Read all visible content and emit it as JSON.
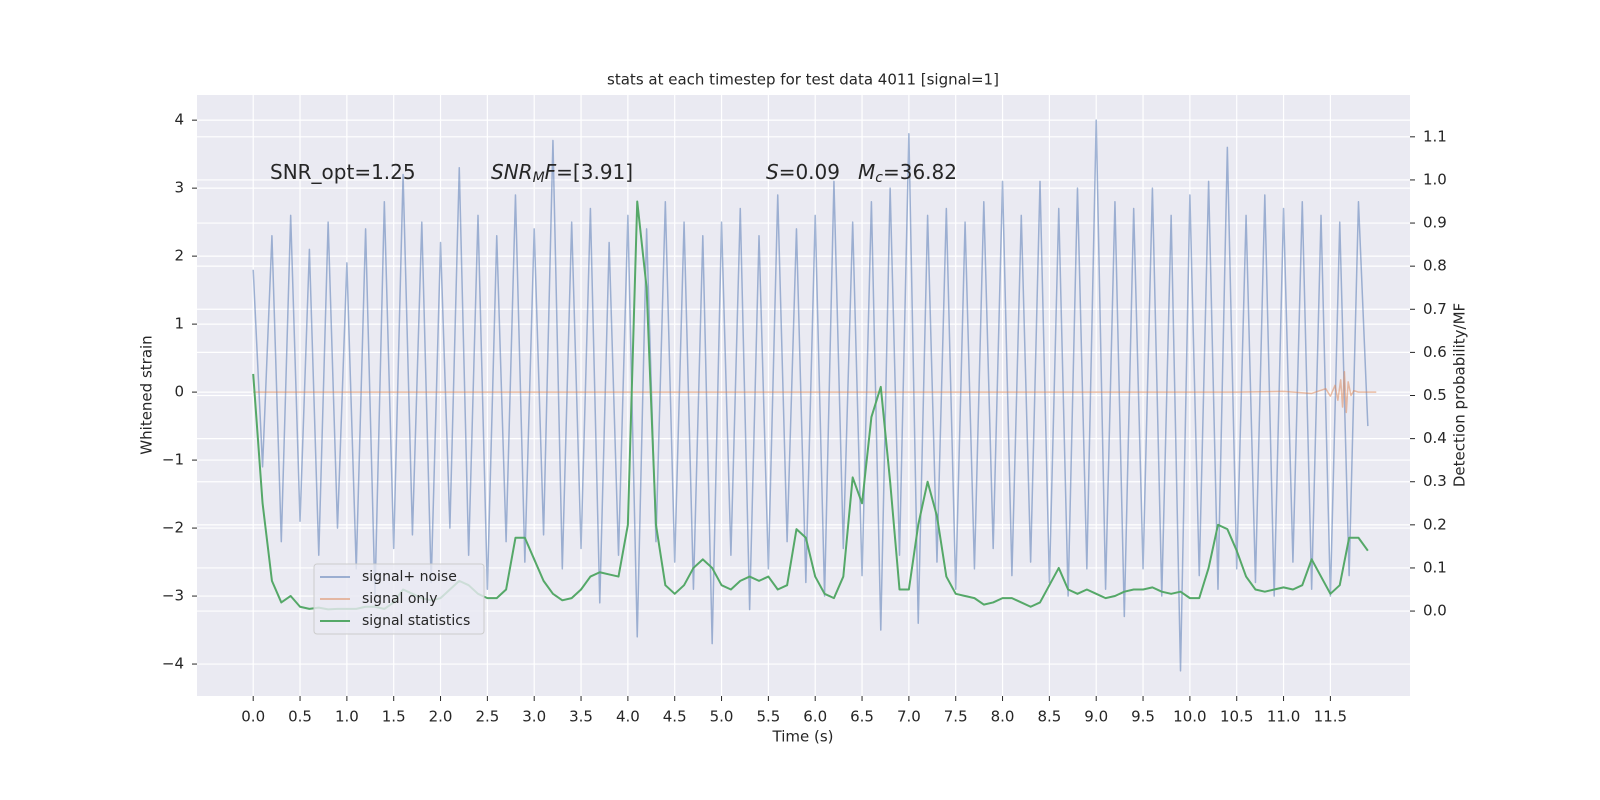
{
  "chart_data": {
    "type": "line",
    "title": "stats at each timestep for test data 4011 [signal=1]",
    "xlabel": "Time (s)",
    "ylabel": "Whitened strain",
    "y2label": "Detection probability/MF",
    "annotations": [
      {
        "parts": [
          {
            "text": "SNR_opt=1.25"
          }
        ]
      },
      {
        "parts": [
          {
            "text": "SNR",
            "italic": true
          },
          {
            "text": "M",
            "italic": true,
            "sub": true
          },
          {
            "text": "F",
            "italic": true
          },
          {
            "text": "=[3.91]"
          }
        ]
      },
      {
        "parts": [
          {
            "text": "S",
            "italic": true
          },
          {
            "text": "=0.09"
          }
        ]
      },
      {
        "parts": [
          {
            "text": "M",
            "italic": true
          },
          {
            "text": "c",
            "italic": true,
            "sub": true
          },
          {
            "text": "=36.82"
          }
        ]
      }
    ],
    "x": [
      0,
      0.1,
      0.2,
      0.3,
      0.4,
      0.5,
      0.6,
      0.7,
      0.8,
      0.9,
      1,
      1.1,
      1.2,
      1.3,
      1.4,
      1.5,
      1.6,
      1.7,
      1.8,
      1.9,
      2,
      2.1,
      2.2,
      2.3,
      2.4,
      2.5,
      2.6,
      2.7,
      2.8,
      2.9,
      3,
      3.1,
      3.2,
      3.3,
      3.4,
      3.5,
      3.6,
      3.7,
      3.8,
      3.9,
      4,
      4.1,
      4.2,
      4.3,
      4.4,
      4.5,
      4.6,
      4.7,
      4.8,
      4.9,
      5,
      5.1,
      5.2,
      5.3,
      5.4,
      5.5,
      5.6,
      5.7,
      5.8,
      5.9,
      6,
      6.1,
      6.2,
      6.3,
      6.4,
      6.5,
      6.6,
      6.7,
      6.8,
      6.9,
      7,
      7.1,
      7.2,
      7.3,
      7.4,
      7.5,
      7.6,
      7.7,
      7.8,
      7.9,
      8,
      8.1,
      8.2,
      8.3,
      8.4,
      8.5,
      8.6,
      8.7,
      8.8,
      8.9,
      9,
      9.1,
      9.2,
      9.3,
      9.4,
      9.5,
      9.6,
      9.7,
      9.8,
      9.9,
      10,
      10.1,
      10.2,
      10.3,
      10.4,
      10.5,
      10.6,
      10.7,
      10.8,
      10.9,
      11,
      11.1,
      11.2,
      11.3,
      11.4,
      11.5,
      11.6,
      11.7,
      11.8,
      11.9
    ],
    "series": [
      {
        "name": "signal+ noise",
        "color": "#4c72b0",
        "opacity": 0.5,
        "values": [
          1.8,
          -1.1,
          2.3,
          -2.2,
          2.6,
          -1.9,
          2.1,
          -2.4,
          2.5,
          -2.0,
          1.9,
          -2.6,
          2.4,
          -3.0,
          2.8,
          -2.3,
          3.2,
          -2.1,
          2.5,
          -2.8,
          2.2,
          -2.0,
          3.3,
          -2.4,
          2.6,
          -2.9,
          2.3,
          -2.2,
          2.9,
          -2.5,
          2.4,
          -2.1,
          3.7,
          -2.6,
          2.5,
          -2.3,
          2.7,
          -3.1,
          2.2,
          -2.4,
          2.6,
          -3.6,
          2.4,
          -2.2,
          2.8,
          -2.5,
          2.5,
          -2.9,
          2.3,
          -3.7,
          2.5,
          -2.4,
          2.7,
          -3.2,
          2.3,
          -2.6,
          2.9,
          -2.2,
          2.4,
          -2.8,
          2.6,
          -3.0,
          3.1,
          -2.3,
          2.5,
          -2.7,
          2.8,
          -3.5,
          3.0,
          -2.4,
          3.8,
          -3.4,
          2.6,
          -2.5,
          2.7,
          -2.9,
          2.5,
          -2.6,
          2.8,
          -2.3,
          3.1,
          -2.7,
          2.6,
          -2.5,
          3.1,
          -2.8,
          2.7,
          -3.0,
          3.0,
          -2.6,
          4.0,
          -2.9,
          2.8,
          -3.3,
          2.7,
          -2.6,
          3.0,
          -3.0,
          2.6,
          -4.1,
          2.9,
          -2.7,
          3.1,
          -2.9,
          3.6,
          -2.6,
          2.6,
          -2.8,
          2.9,
          -3.0,
          2.7,
          -2.5,
          2.8,
          -2.9,
          2.6,
          -3.0,
          2.5,
          -2.7,
          2.8,
          -0.5
        ]
      },
      {
        "name": "signal only",
        "color": "#dd8452",
        "opacity": 0.5,
        "x": [
          0,
          10.5,
          11.0,
          11.3,
          11.45,
          11.5,
          11.55,
          11.58,
          11.61,
          11.63,
          11.65,
          11.67,
          11.69,
          11.72,
          11.75,
          11.8,
          11.99
        ],
        "values": [
          0,
          0,
          0.01,
          -0.02,
          0.05,
          -0.06,
          0.1,
          -0.12,
          0.18,
          -0.22,
          0.3,
          -0.3,
          0.15,
          -0.05,
          0.02,
          0,
          0
        ]
      },
      {
        "name": "signal statistics",
        "color": "#55a868",
        "opacity": 1,
        "axis": "y2",
        "values": [
          0.55,
          0.25,
          0.07,
          0.02,
          0.035,
          0.01,
          0.005,
          0.008,
          0.004,
          0.005,
          0.005,
          0.005,
          0.01,
          0.01,
          0.005,
          0.02,
          0.05,
          0.04,
          0.03,
          0.025,
          0.03,
          0.05,
          0.07,
          0.06,
          0.04,
          0.03,
          0.03,
          0.05,
          0.17,
          0.17,
          0.12,
          0.07,
          0.04,
          0.025,
          0.03,
          0.05,
          0.08,
          0.09,
          0.085,
          0.08,
          0.2,
          0.95,
          0.75,
          0.2,
          0.06,
          0.04,
          0.06,
          0.1,
          0.12,
          0.1,
          0.06,
          0.05,
          0.07,
          0.08,
          0.07,
          0.08,
          0.05,
          0.06,
          0.19,
          0.17,
          0.08,
          0.04,
          0.03,
          0.08,
          0.31,
          0.25,
          0.45,
          0.52,
          0.3,
          0.05,
          0.05,
          0.2,
          0.3,
          0.22,
          0.08,
          0.04,
          0.035,
          0.03,
          0.015,
          0.02,
          0.03,
          0.03,
          0.02,
          0.01,
          0.02,
          0.06,
          0.1,
          0.05,
          0.04,
          0.05,
          0.04,
          0.03,
          0.035,
          0.045,
          0.05,
          0.05,
          0.055,
          0.045,
          0.04,
          0.045,
          0.03,
          0.03,
          0.1,
          0.2,
          0.19,
          0.14,
          0.08,
          0.05,
          0.045,
          0.05,
          0.055,
          0.05,
          0.06,
          0.12,
          0.08,
          0.04,
          0.06,
          0.17,
          0.17,
          0.14
        ]
      }
    ],
    "xlim": [
      -0.6,
      12.35
    ],
    "xticks": [
      {
        "value": 0,
        "label": "0.0"
      },
      0.5,
      {
        "value": 1,
        "label": "1.0"
      },
      1.5,
      {
        "value": 2,
        "label": "2.0"
      },
      2.5,
      {
        "value": 3,
        "label": "3.0"
      },
      3.5,
      {
        "value": 4,
        "label": "4.0"
      },
      4.5,
      {
        "value": 5,
        "label": "5.0"
      },
      5.5,
      {
        "value": 6,
        "label": "6.0"
      },
      6.5,
      {
        "value": 7,
        "label": "7.0"
      },
      7.5,
      {
        "value": 8,
        "label": "8.0"
      },
      8.5,
      {
        "value": 9,
        "label": "9.0"
      },
      9.5,
      {
        "value": 10,
        "label": "10.0"
      },
      10.5,
      {
        "value": 11,
        "label": "11.0"
      },
      11.5
    ],
    "ylim": [
      -4.47,
      4.37
    ],
    "yticks": [
      {
        "value": -4,
        "label": "−4"
      },
      {
        "value": -3,
        "label": "−3"
      },
      {
        "value": -2,
        "label": "−2"
      },
      {
        "value": -1,
        "label": "−1"
      },
      0,
      1,
      2,
      3,
      4
    ],
    "y2lim": [
      -0.197,
      1.197
    ],
    "y2ticks": [
      {
        "value": 0,
        "label": "0.0"
      },
      0.1,
      0.2,
      0.3,
      0.4,
      0.5,
      0.6,
      0.7,
      0.8,
      0.9,
      {
        "value": 1,
        "label": "1.0"
      },
      1.1
    ],
    "grid": true,
    "legend": "lower left",
    "background": "#eaeaf2"
  }
}
